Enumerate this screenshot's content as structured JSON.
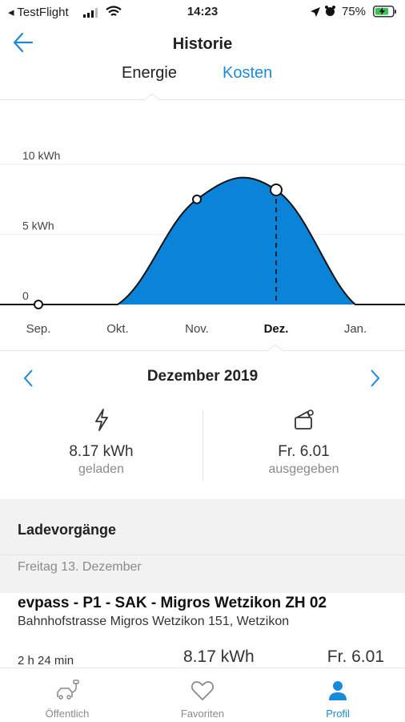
{
  "status_bar": {
    "carrier": "◂ TestFlight",
    "time": "14:23",
    "battery": "75%"
  },
  "header": {
    "title": "Historie",
    "tabs": [
      {
        "label": "Energie",
        "active": true
      },
      {
        "label": "Kosten",
        "active": false
      }
    ]
  },
  "chart_data": {
    "type": "area",
    "categories": [
      "Sep.",
      "Okt.",
      "Nov.",
      "Dez.",
      "Jan."
    ],
    "values": [
      0,
      0,
      7.5,
      8.17,
      0
    ],
    "selected": "Dez.",
    "ytick_labels": [
      "10 kWh",
      "5 kWh",
      "0"
    ],
    "yticks": [
      10,
      5,
      0
    ],
    "ylim": [
      0,
      10
    ],
    "accent": "#0a83d8"
  },
  "period": {
    "label": "Dezember 2019"
  },
  "stats": {
    "energy_value": "8.17 kWh",
    "energy_label": "geladen",
    "cost_value": "Fr. 6.01",
    "cost_label": "ausgegeben"
  },
  "sessions": {
    "title": "Ladevorgänge",
    "date": "Freitag 13. Dezember",
    "item": {
      "name": "evpass - P1 - SAK - Migros Wetzikon ZH 02",
      "address": "Bahnhofstrasse Migros Wetzikon 151, Wetzikon",
      "duration": "2 h 24 min",
      "energy": "8.17 kWh",
      "cost": "Fr. 6.01"
    }
  },
  "tabbar": {
    "items": [
      {
        "label": "Öffentlich",
        "active": false
      },
      {
        "label": "Favoriten",
        "active": false
      },
      {
        "label": "Profil",
        "active": true
      }
    ]
  },
  "colors": {
    "accent": "#0a83d8",
    "muted": "#8a8a8a"
  }
}
